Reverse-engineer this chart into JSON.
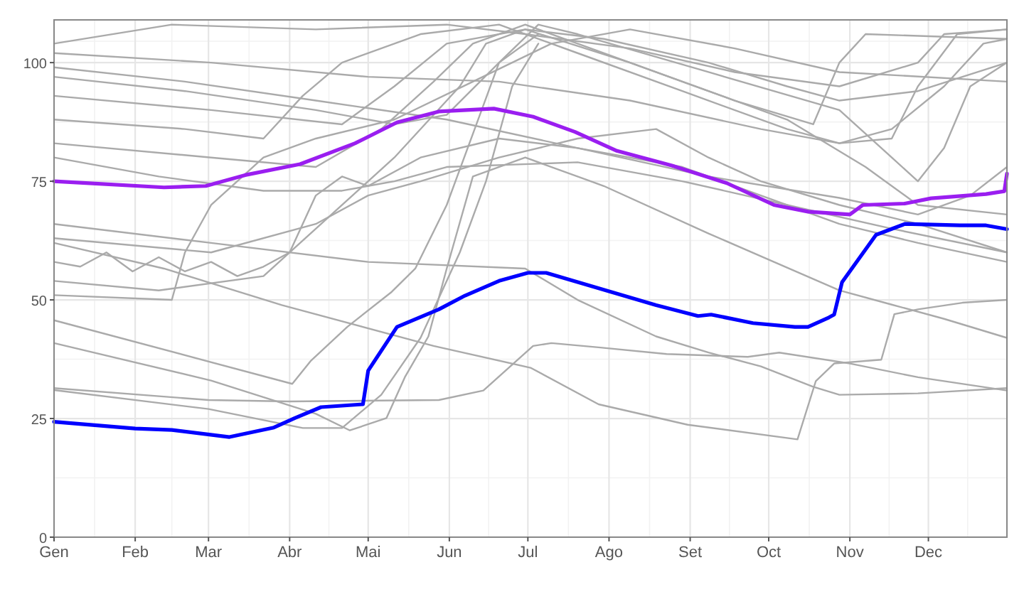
{
  "chart_data": {
    "type": "line",
    "xlim": [
      "--01-01",
      "--12-31"
    ],
    "ylim": [
      0,
      109
    ],
    "xticks": [
      {
        "value": "--01-01",
        "label": "Gen"
      },
      {
        "value": "--02-01",
        "label": "Feb"
      },
      {
        "value": "--03-01",
        "label": "Mar"
      },
      {
        "value": "--04-01",
        "label": "Abr"
      },
      {
        "value": "--05-01",
        "label": "Mai"
      },
      {
        "value": "--06-01",
        "label": "Jun"
      },
      {
        "value": "--07-01",
        "label": "Jul"
      },
      {
        "value": "--08-01",
        "label": "Ago"
      },
      {
        "value": "--09-01",
        "label": "Set"
      },
      {
        "value": "--10-01",
        "label": "Oct"
      },
      {
        "value": "--11-01",
        "label": "Nov"
      },
      {
        "value": "--12-01",
        "label": "Dec"
      }
    ],
    "yticks": [
      0,
      25,
      50,
      75,
      100
    ],
    "grid": true,
    "line_style": "solid",
    "series": [
      {
        "color": "#aaaaaa",
        "x": [
          "--01-01",
          "--03-01",
          "--04-06",
          "--04-21",
          "--05-06",
          "--05-21",
          "--06-05",
          "--06-15",
          "--06-25",
          "--07-05"
        ],
        "values": [
          31,
          27,
          23,
          23,
          30,
          42,
          60,
          75,
          95,
          104
        ]
      },
      {
        "color": "#aaaaaa",
        "x": [
          "--01-01",
          "--03-01",
          "--04-01",
          "--05-28",
          "--06-14",
          "--07-03",
          "--07-10",
          "--07-28",
          "--08-23",
          "--09-23",
          "--10-05",
          "--11-01",
          "--11-27",
          "--12-31"
        ],
        "values": [
          31.4,
          28.9,
          28.6,
          28.9,
          30.9,
          40.3,
          40.9,
          40,
          38.6,
          38,
          38.9,
          36.6,
          33.7,
          30.9
        ]
      },
      {
        "color": "#aaaaaa",
        "x": [
          "--01-01",
          "--02-12",
          "--03-29",
          "--05-26",
          "--07-02",
          "--07-28",
          "--08-31",
          "--10-12",
          "--10-19",
          "--10-26",
          "--11-13",
          "--11-18",
          "--11-27",
          "--12-14",
          "--12-31"
        ],
        "values": [
          62,
          56.6,
          48.9,
          40.3,
          35.7,
          28,
          23.7,
          20.6,
          32.9,
          36.6,
          37.4,
          47,
          48,
          49.4,
          50
        ]
      },
      {
        "color": "#aaaaaa",
        "x": [
          "--01-01",
          "--04-02",
          "--04-09",
          "--04-23",
          "--05-10",
          "--05-19",
          "--05-31",
          "--06-10",
          "--06-20",
          "--07-05"
        ],
        "values": [
          45.7,
          32.3,
          37.1,
          44.3,
          51.7,
          56.6,
          70,
          85,
          100,
          106
        ]
      },
      {
        "color": "#aaaaaa",
        "x": [
          "--01-01",
          "--03-02",
          "--04-11",
          "--04-24",
          "--05-08",
          "--05-15",
          "--05-24",
          "--05-31",
          "--06-10",
          "--06-30",
          "--07-30",
          "--09-08",
          "--10-03",
          "--10-28",
          "--11-17",
          "--12-07",
          "--12-31"
        ],
        "values": [
          40.9,
          33,
          26,
          22.5,
          25.1,
          33.7,
          42.3,
          56.6,
          76,
          80,
          74,
          64,
          58,
          52,
          49,
          46,
          42
        ]
      },
      {
        "color": "#aaaaaa",
        "x": [
          "--01-01",
          "--03-02",
          "--05-01",
          "--06-30",
          "--07-20",
          "--08-19",
          "--09-08",
          "--09-28",
          "--10-18",
          "--10-28",
          "--11-27",
          "--12-31"
        ],
        "values": [
          66,
          62,
          58,
          56.6,
          50,
          42.3,
          38.9,
          36,
          31.7,
          30,
          30.3,
          31.4
        ]
      },
      {
        "color": "#aaaaaa",
        "x": [
          "--01-01",
          "--02-15",
          "--04-11",
          "--05-31",
          "--06-30",
          "--08-09",
          "--09-18",
          "--10-28",
          "--11-27",
          "--12-07",
          "--12-31"
        ],
        "values": [
          104,
          108,
          107,
          108,
          106,
          103,
          98,
          95,
          100,
          106,
          107
        ]
      },
      {
        "color": "#aaaaaa",
        "x": [
          "--01-01",
          "--03-02",
          "--05-01",
          "--06-20",
          "--08-09",
          "--09-28",
          "--10-28",
          "--11-17",
          "--11-27",
          "--12-12",
          "--12-31"
        ],
        "values": [
          102,
          100,
          97,
          96,
          92,
          86,
          83,
          84,
          95,
          106,
          107
        ]
      },
      {
        "color": "#aaaaaa",
        "x": [
          "--01-01",
          "--02-20",
          "--04-11",
          "--05-31",
          "--07-20",
          "--09-08",
          "--10-28",
          "--11-27",
          "--12-17",
          "--12-31"
        ],
        "values": [
          99,
          96,
          92,
          88,
          82,
          76,
          71.5,
          68,
          72,
          78
        ]
      },
      {
        "color": "#aaaaaa",
        "x": [
          "--01-01",
          "--03-02",
          "--04-21",
          "--05-11",
          "--05-31",
          "--06-30",
          "--08-09",
          "--09-18",
          "--10-18",
          "--10-28",
          "--11-07",
          "--12-31"
        ],
        "values": [
          93,
          90,
          87,
          95,
          104,
          107,
          100,
          92,
          87,
          100,
          106,
          105
        ]
      },
      {
        "color": "#aaaaaa",
        "x": [
          "--01-01",
          "--02-20",
          "--03-22",
          "--04-06",
          "--04-21",
          "--05-21",
          "--06-20",
          "--07-20",
          "--08-29",
          "--10-08",
          "--10-28",
          "--11-17",
          "--12-07",
          "--12-22",
          "--12-31"
        ],
        "values": [
          88,
          86,
          84,
          93,
          100,
          106,
          108,
          102,
          94,
          86,
          83,
          86,
          95,
          104,
          105
        ]
      },
      {
        "color": "#aaaaaa",
        "x": [
          "--01-01",
          "--03-02",
          "--04-11",
          "--05-06",
          "--05-26",
          "--06-10",
          "--06-30",
          "--07-20",
          "--08-29",
          "--10-08",
          "--11-07",
          "--11-27",
          "--12-31"
        ],
        "values": [
          83,
          80,
          78,
          86,
          96,
          104,
          108,
          104,
          96,
          88,
          78,
          70,
          68
        ]
      },
      {
        "color": "#aaaaaa",
        "x": [
          "--01-01",
          "--02-10",
          "--03-22",
          "--04-21",
          "--05-11",
          "--05-31",
          "--07-20",
          "--08-29",
          "--10-08",
          "--11-17",
          "--12-31"
        ],
        "values": [
          80,
          76,
          73,
          73,
          75,
          78,
          79,
          75,
          70,
          65,
          60
        ]
      },
      {
        "color": "#aaaaaa",
        "x": [
          "--01-01",
          "--01-11",
          "--01-21",
          "--01-31",
          "--02-10",
          "--02-20",
          "--03-02",
          "--03-12",
          "--03-22",
          "--04-01",
          "--04-11",
          "--04-21",
          "--05-01",
          "--05-21",
          "--06-20",
          "--07-20",
          "--08-29",
          "--09-28",
          "--10-28",
          "--11-27",
          "--12-31"
        ],
        "values": [
          58,
          57,
          60,
          56,
          59,
          56,
          58,
          55,
          57,
          60,
          72,
          76,
          74,
          80,
          84,
          82,
          78,
          72,
          66,
          62,
          58
        ]
      },
      {
        "color": "#aaaaaa",
        "x": [
          "--01-01",
          "--03-02",
          "--04-11",
          "--05-01",
          "--05-21",
          "--06-20",
          "--07-20",
          "--08-19",
          "--09-08",
          "--09-28",
          "--10-28",
          "--11-27",
          "--12-31"
        ],
        "values": [
          63,
          60,
          66,
          72,
          75,
          80,
          84,
          86,
          80,
          75,
          70,
          66,
          60
        ]
      },
      {
        "color": "#aaaaaa",
        "x": [
          "--01-01",
          "--02-10",
          "--03-22",
          "--04-11",
          "--05-11",
          "--06-05",
          "--06-15",
          "--06-30",
          "--07-30",
          "--09-08",
          "--10-08",
          "--10-28",
          "--11-27",
          "--12-31"
        ],
        "values": [
          54,
          52,
          55,
          65,
          80,
          95,
          104,
          107,
          105,
          100,
          95,
          92,
          94,
          100
        ]
      },
      {
        "color": "#aaaaaa",
        "x": [
          "--01-01",
          "--02-15",
          "--02-20",
          "--03-02",
          "--03-22",
          "--04-11",
          "--05-11",
          "--06-10",
          "--07-10",
          "--08-09",
          "--09-18",
          "--10-28",
          "--12-31"
        ],
        "values": [
          51,
          50,
          60,
          70,
          80,
          84,
          88,
          96,
          104,
          107,
          103,
          98,
          96
        ]
      },
      {
        "color": "#aaaaaa",
        "x": [
          "--01-01",
          "--02-20",
          "--04-11",
          "--05-11",
          "--05-31",
          "--06-20",
          "--07-05",
          "--07-20",
          "--09-08",
          "--10-28",
          "--11-17",
          "--11-27",
          "--12-07",
          "--12-17",
          "--12-31"
        ],
        "values": [
          97,
          94,
          90,
          87,
          89,
          100,
          108,
          106,
          98,
          90,
          80,
          75,
          82,
          95,
          100
        ]
      },
      {
        "color": "#9a1ef0",
        "x": [
          "--01-01",
          "--02-12",
          "--02-28",
          "--03-15",
          "--04-05",
          "--04-26",
          "--05-12",
          "--05-28",
          "--06-18",
          "--07-03",
          "--07-19",
          "--08-04",
          "--08-25",
          "--09-15",
          "--10-03",
          "--10-16",
          "--11-01",
          "--11-06",
          "--11-22",
          "--12-02",
          "--12-23",
          "--12-30",
          "--12-31"
        ],
        "values": [
          75,
          73.7,
          74,
          76.3,
          78.6,
          83,
          87.4,
          89.7,
          90.3,
          88.6,
          85.4,
          81.4,
          78.3,
          74.6,
          70,
          68.6,
          68,
          70,
          70.3,
          71.4,
          72.3,
          72.9,
          76.6
        ]
      },
      {
        "color": "#0000ff",
        "x": [
          "--01-01",
          "--02-01",
          "--02-15",
          "--03-09",
          "--03-26",
          "--04-03",
          "--04-13",
          "--04-29",
          "--05-01",
          "--05-12",
          "--05-28",
          "--06-07",
          "--06-20",
          "--07-01",
          "--07-08",
          "--07-29",
          "--08-19",
          "--09-04",
          "--09-09",
          "--09-25",
          "--10-11",
          "--10-16",
          "--10-24",
          "--10-26",
          "--10-29",
          "--11-11",
          "--11-22",
          "--12-13",
          "--12-23",
          "--12-31"
        ],
        "values": [
          24.3,
          22.9,
          22.6,
          21.1,
          23.1,
          25.1,
          27.4,
          28,
          35.1,
          44.3,
          48,
          50.9,
          54,
          55.7,
          55.7,
          52.3,
          48.9,
          46.6,
          46.9,
          45.1,
          44.3,
          44.3,
          46.3,
          46.9,
          53.7,
          63.7,
          66,
          65.7,
          65.7,
          64.9
        ]
      }
    ]
  }
}
